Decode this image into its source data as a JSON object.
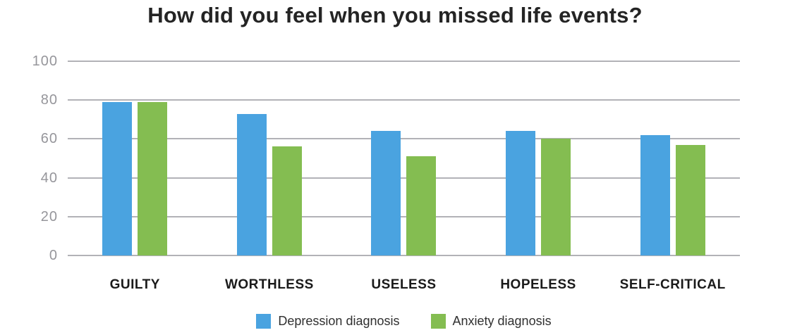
{
  "title": "How did you feel when you missed life events?",
  "chart_data": {
    "type": "bar",
    "title": "How did you feel when you missed life events?",
    "categories": [
      "GUILTY",
      "WORTHLESS",
      "USELESS",
      "HOPELESS",
      "SELF-CRITICAL"
    ],
    "series": [
      {
        "name": "Depression diagnosis",
        "color": "#4aa3e0",
        "values": [
          79,
          73,
          64,
          64,
          62
        ]
      },
      {
        "name": "Anxiety diagnosis",
        "color": "#84bd51",
        "values": [
          79,
          56,
          51,
          60,
          57
        ]
      }
    ],
    "xlabel": "",
    "ylabel": "",
    "ylim": [
      0,
      100
    ],
    "y_ticks": [
      0,
      20,
      40,
      60,
      80,
      100
    ],
    "grid": true,
    "legend_position": "bottom"
  },
  "colors": {
    "depression_bar": "#4aa3e0",
    "anxiety_bar": "#84bd51",
    "gridline": "#b2b2b7",
    "tick_label": "#96969b",
    "category_label": "#1a1a1a",
    "title_text": "#242424",
    "legend_text": "#303030",
    "background": "#ffffff"
  }
}
